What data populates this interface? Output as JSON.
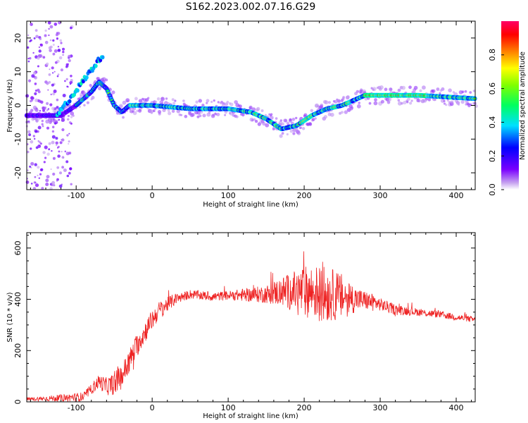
{
  "title": "S162.2023.002.07.16.G29",
  "chart_data": [
    {
      "type": "heatmap",
      "xlabel": "Height of straight line (km)",
      "ylabel": "Frequency (Hz)",
      "xlim": [
        -165,
        425
      ],
      "ylim": [
        -25,
        25
      ],
      "xticks": [
        -100,
        0,
        100,
        200,
        300,
        400
      ],
      "yticks": [
        -20,
        -10,
        0,
        10,
        20
      ],
      "colorbar": {
        "label": "Normalized spectral amplitude",
        "ticks": [
          "0.0",
          "0.2",
          "0.4",
          "0.6",
          "0.8"
        ],
        "range": [
          0,
          1
        ]
      },
      "ridge": {
        "x": [
          -165,
          -120,
          -100,
          -80,
          -70,
          -60,
          -50,
          -45,
          -40,
          -35,
          -30,
          0,
          50,
          100,
          130,
          150,
          170,
          190,
          210,
          230,
          250,
          270,
          280,
          300,
          350,
          425
        ],
        "y": [
          -3,
          -3,
          0,
          4,
          7,
          5,
          0,
          -1,
          -2,
          -1,
          0,
          0,
          -1,
          -1,
          -2,
          -4,
          -7,
          -6,
          -3,
          -1,
          0,
          2,
          3,
          3,
          3,
          2
        ]
      }
    },
    {
      "type": "line",
      "xlabel": "Height of straight line (km)",
      "ylabel": "SNR (10 * v/v)",
      "xlim": [
        -165,
        425
      ],
      "ylim": [
        0,
        660
      ],
      "xticks": [
        -100,
        0,
        100,
        200,
        300,
        400
      ],
      "yticks": [
        0,
        200,
        400,
        600
      ],
      "color": "#ee2222",
      "envelope": {
        "x": [
          -165,
          -120,
          -90,
          -80,
          -70,
          -60,
          -50,
          -40,
          -30,
          -20,
          -10,
          0,
          10,
          20,
          30,
          50,
          80,
          100,
          150,
          170,
          190,
          210,
          230,
          250,
          270,
          290,
          300,
          320,
          350,
          380,
          400,
          425
        ],
        "y": [
          10,
          15,
          20,
          50,
          80,
          60,
          70,
          100,
          160,
          220,
          270,
          320,
          360,
          380,
          400,
          420,
          410,
          415,
          420,
          430,
          430,
          430,
          420,
          410,
          400,
          390,
          380,
          360,
          350,
          340,
          330,
          320
        ]
      },
      "spread": {
        "x": [
          -165,
          -80,
          -40,
          0,
          40,
          100,
          150,
          180,
          200,
          230,
          250,
          270,
          300,
          350,
          425
        ],
        "y": [
          6,
          20,
          50,
          40,
          18,
          18,
          35,
          70,
          100,
          110,
          90,
          45,
          25,
          15,
          12
        ]
      }
    }
  ]
}
